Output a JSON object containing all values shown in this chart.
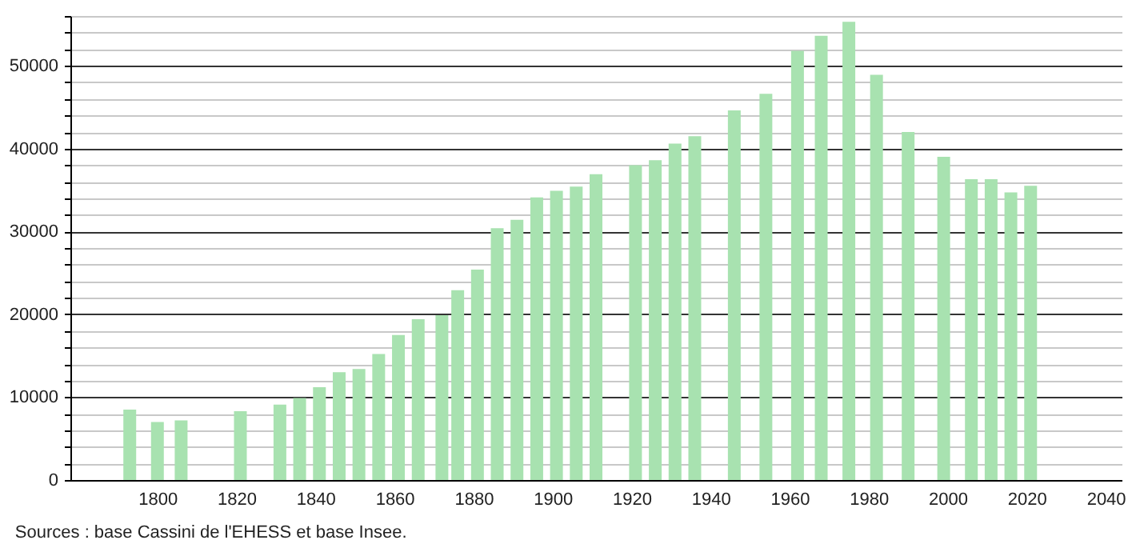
{
  "chart_data": {
    "type": "bar",
    "x": [
      1793,
      1800,
      1806,
      1821,
      1831,
      1836,
      1841,
      1846,
      1851,
      1856,
      1861,
      1866,
      1872,
      1876,
      1881,
      1886,
      1891,
      1896,
      1901,
      1906,
      1911,
      1921,
      1926,
      1931,
      1936,
      1946,
      1954,
      1962,
      1968,
      1975,
      1982,
      1990,
      1999,
      2006,
      2011,
      2016,
      2021
    ],
    "values": [
      8500,
      7000,
      7200,
      8300,
      9100,
      9900,
      11200,
      13000,
      13400,
      15200,
      17500,
      19400,
      19900,
      22900,
      25400,
      30400,
      31400,
      34100,
      34900,
      35400,
      36900,
      38000,
      38600,
      40600,
      41500,
      44600,
      46600,
      51800,
      53600,
      55300,
      48900,
      42000,
      39000,
      36300,
      36300,
      34700,
      35500
    ],
    "color": "#a8e2b0",
    "xlim": [
      1780,
      2042
    ],
    "xticks": [
      1800,
      1820,
      1840,
      1860,
      1880,
      1900,
      1920,
      1940,
      1960,
      1980,
      2000,
      2020,
      2040
    ],
    "ylim": [
      0,
      56000
    ],
    "yticks": [
      0,
      {
        "value": 2000,
        "label": null
      },
      {
        "value": 4000,
        "label": null
      },
      {
        "value": 6000,
        "label": null
      },
      {
        "value": 8000,
        "label": null
      },
      10000,
      {
        "value": 12000,
        "label": null
      },
      {
        "value": 14000,
        "label": null
      },
      {
        "value": 16000,
        "label": null
      },
      {
        "value": 18000,
        "label": null
      },
      20000,
      {
        "value": 22000,
        "label": null
      },
      {
        "value": 24000,
        "label": null
      },
      {
        "value": 26000,
        "label": null
      },
      {
        "value": 28000,
        "label": null
      },
      30000,
      {
        "value": 32000,
        "label": null
      },
      {
        "value": 34000,
        "label": null
      },
      {
        "value": 36000,
        "label": null
      },
      {
        "value": 38000,
        "label": null
      },
      40000,
      {
        "value": 42000,
        "label": null
      },
      {
        "value": 44000,
        "label": null
      },
      {
        "value": 46000,
        "label": null
      },
      {
        "value": 48000,
        "label": null
      },
      50000,
      {
        "value": 52000,
        "label": null
      },
      {
        "value": 54000,
        "label": null
      },
      {
        "value": 56000,
        "label": null
      }
    ],
    "grid": "y",
    "annotations": [
      "Sources : base Cassini de l'EHESS et base Insee."
    ]
  }
}
